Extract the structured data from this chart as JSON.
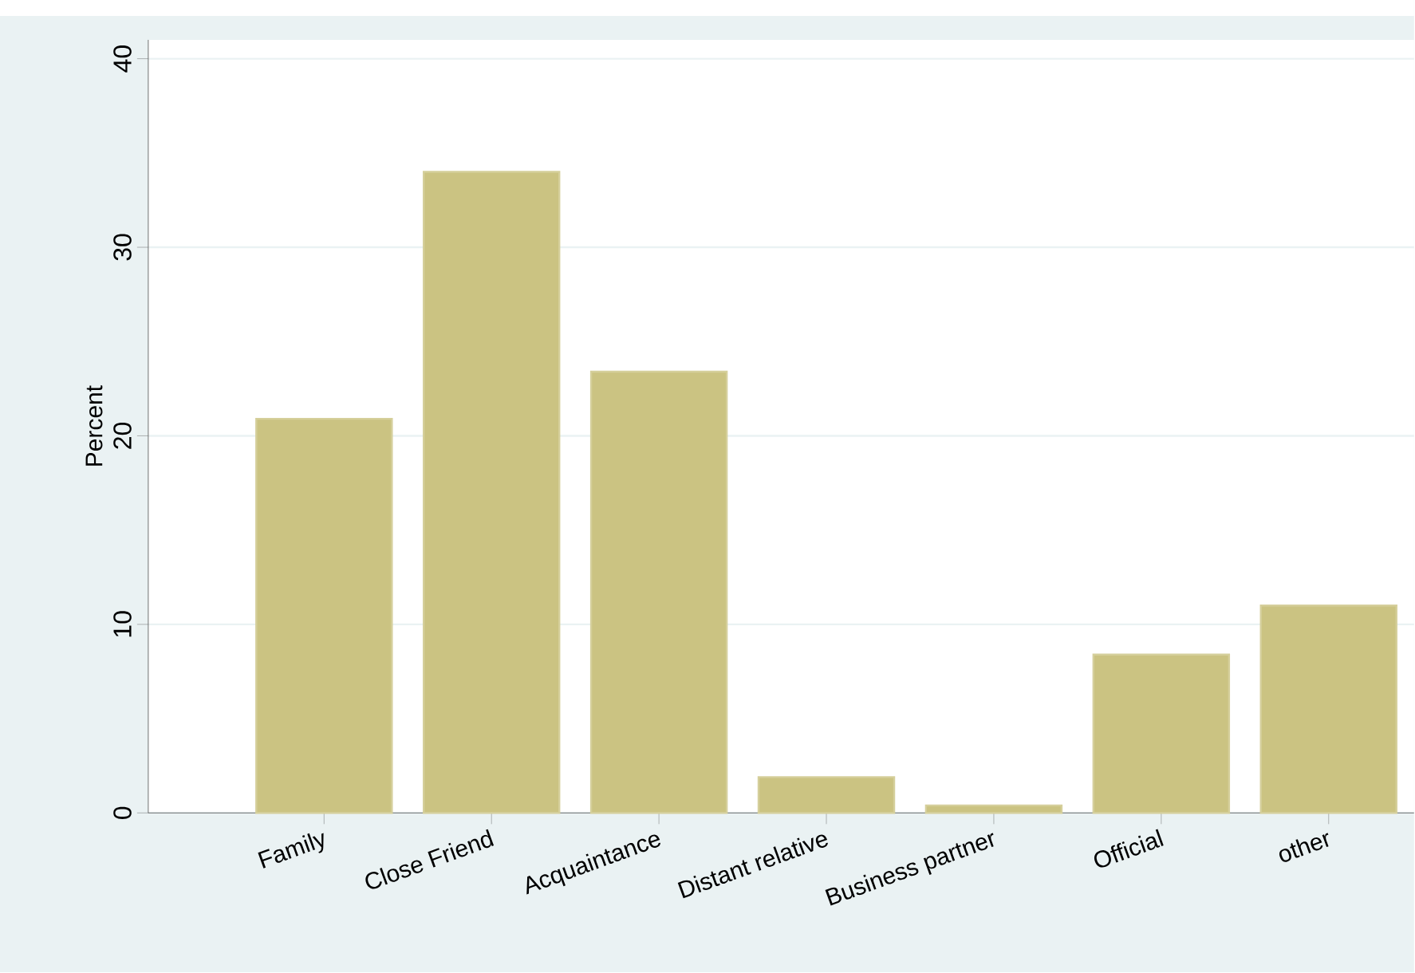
{
  "chart_data": {
    "type": "bar",
    "ylabel": "Percent",
    "categories": [
      "Family",
      "Close Friend",
      "Acquaintance",
      "Distant relative",
      "Business partner",
      "Official",
      "other"
    ],
    "values": [
      20.9,
      34.0,
      23.4,
      1.9,
      0.4,
      8.4,
      11.0
    ],
    "color": "#cbc382",
    "ylim": [
      0,
      41
    ],
    "yticks": [
      0,
      10,
      20,
      30,
      40
    ],
    "grid": "y"
  }
}
